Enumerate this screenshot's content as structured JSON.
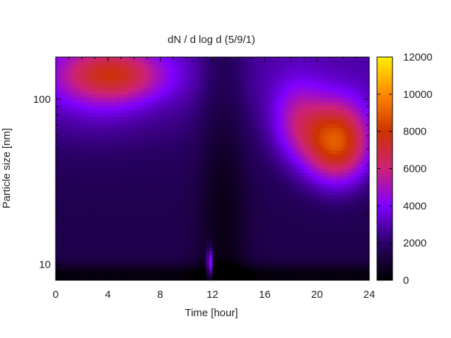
{
  "chart_data": {
    "type": "heatmap",
    "title": "dN / d log d (5/9/1)",
    "xlabel": "Time [hour]",
    "ylabel": "Particle size [nm]",
    "xlim": [
      0,
      24
    ],
    "ylim": [
      8,
      180
    ],
    "y_scale": "log",
    "x_ticks": [
      0,
      4,
      8,
      12,
      16,
      20,
      24
    ],
    "x_tick_labels": [
      "0",
      "4",
      "8",
      "12",
      "16",
      "20",
      "24"
    ],
    "y_ticks": [
      10,
      100
    ],
    "y_tick_labels": [
      "10",
      "100"
    ],
    "colorbar": {
      "min": 0,
      "max": 12000,
      "ticks": [
        0,
        2000,
        4000,
        6000,
        8000,
        10000,
        12000
      ],
      "tick_labels": [
        "0",
        "2000",
        "4000",
        "6000",
        "8000",
        "10000",
        "12000"
      ],
      "colormap": [
        "#000000",
        "#2a0066",
        "#7f00ff",
        "#cc2277",
        "#cc3300",
        "#ff8800",
        "#ffee00"
      ]
    },
    "features": [
      {
        "time": [
          0.5,
          8
        ],
        "size_nm": [
          90,
          220
        ],
        "peak_value": 5600
      },
      {
        "time": [
          11.5,
          12
        ],
        "size_nm": [
          9,
          15
        ],
        "peak_value": 5800
      },
      {
        "time": [
          17,
          24
        ],
        "size_nm": [
          30,
          110
        ],
        "peak_value": 8600
      }
    ],
    "grid": false
  }
}
